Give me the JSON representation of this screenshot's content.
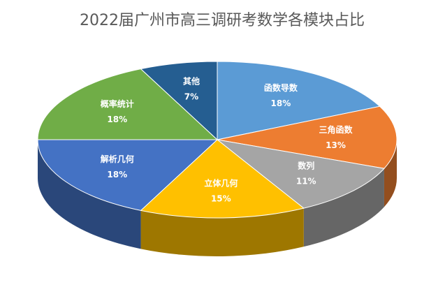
{
  "chart_data": {
    "type": "pie",
    "title": "2022届广州市高三调研考数学各模块占比",
    "categories": [
      "函数导数",
      "三角函数",
      "数列",
      "立体几何",
      "解析几何",
      "概率统计",
      "其他"
    ],
    "values": [
      18,
      13,
      11,
      15,
      18,
      18,
      7
    ],
    "value_labels": [
      "18%",
      "13%",
      "11%",
      "15%",
      "18%",
      "18%",
      "7%"
    ],
    "colors": [
      "#5b9bd5",
      "#ed7d31",
      "#a5a5a5",
      "#ffc000",
      "#4472c4",
      "#70ad47",
      "#255e91"
    ]
  }
}
